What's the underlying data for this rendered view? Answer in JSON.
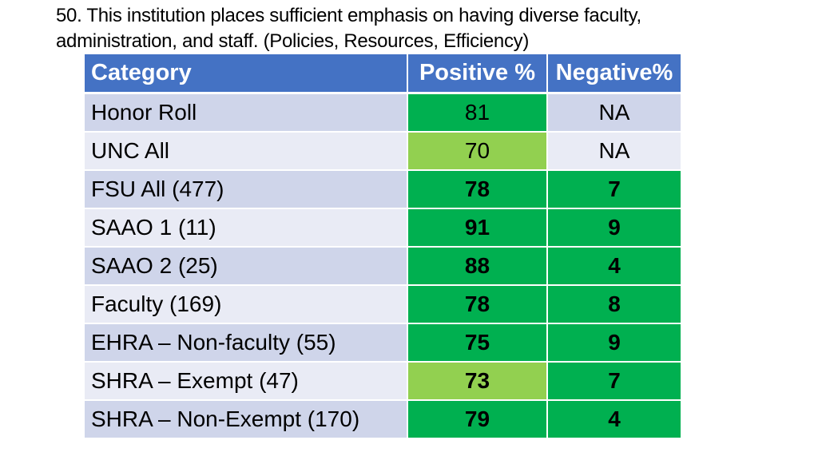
{
  "slide": {
    "title_line1": "50. This institution places sufficient emphasis on having diverse faculty,",
    "title_line2": "administration, and staff. (Policies, Resources, Efficiency)"
  },
  "table": {
    "headers": {
      "category": "Category",
      "positive": "Positive %",
      "negative": "Negative%"
    },
    "colors": {
      "header": "#4472c4",
      "row_dark": "#cfd5ea",
      "row_light": "#e9ebf5",
      "green": "#00b050",
      "light_green": "#92d050"
    },
    "rows": [
      {
        "category": "Honor Roll",
        "positive": "81",
        "negative": "NA"
      },
      {
        "category": "UNC All",
        "positive": "70",
        "negative": "NA"
      },
      {
        "category": "FSU All (477)",
        "positive": "78",
        "negative": "7"
      },
      {
        "category": "SAAO 1 (11)",
        "positive": "91",
        "negative": "9"
      },
      {
        "category": "SAAO 2 (25)",
        "positive": "88",
        "negative": "4"
      },
      {
        "category": "Faculty (169)",
        "positive": "78",
        "negative": "8"
      },
      {
        "category": "EHRA – Non-faculty (55)",
        "positive": "75",
        "negative": "9"
      },
      {
        "category": "SHRA – Exempt (47)",
        "positive": "73",
        "negative": "7"
      },
      {
        "category": "SHRA – Non-Exempt (170)",
        "positive": "79",
        "negative": "4"
      }
    ]
  }
}
